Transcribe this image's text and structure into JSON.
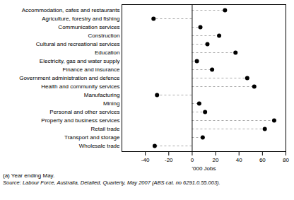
{
  "chart_data": {
    "type": "dot",
    "orientation": "horizontal",
    "categories": [
      "Accommodation, cafes and restaurants",
      "Agriculture, forestry and fishing",
      "Communication services",
      "Construction",
      "Cultural and recreational services",
      "Education",
      "Electricity, gas and water supply",
      "Finance and insurance",
      "Government administration and defence",
      "Health and community services",
      "Manufacturing",
      "Mining",
      "Personal and other services",
      "Property and business services",
      "Retail trade",
      "Transport and storage",
      "Wholesale trade"
    ],
    "values": [
      28,
      -33,
      7,
      23,
      13,
      37,
      4,
      17,
      47,
      53,
      -30,
      6,
      11,
      70,
      62,
      9,
      -32
    ],
    "xlabel": "'000 Jobs",
    "xlim": [
      -60,
      80
    ],
    "xticks": [
      -40,
      -20,
      0,
      20,
      40,
      60,
      80
    ],
    "color": "#000000",
    "marker": "circle",
    "line_style": "dashed",
    "grid": false,
    "annotations": [
      "(a) Year ending May.",
      "Source: Labour Force, Australia, Detailed, Quarterly, May 2007 (ABS cat. no 6291.0.55.003)."
    ]
  }
}
